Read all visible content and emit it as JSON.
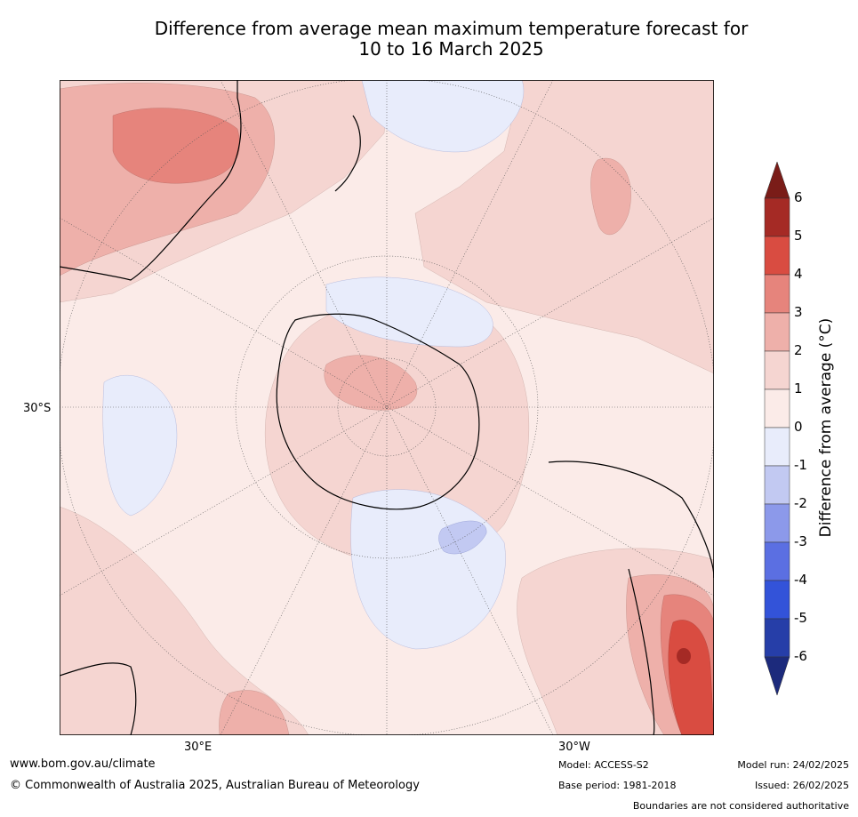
{
  "title": {
    "line1": "Difference from average mean maximum temperature forecast for",
    "line2": "10 to 16 March 2025"
  },
  "map": {
    "projection": "south-polar",
    "lat_labels": [
      "30°S"
    ],
    "lon_labels": [
      "30°E",
      "30°W"
    ]
  },
  "colorbar": {
    "label": "Difference from average ($^\\circ$C)",
    "label_display": "Difference from average (°C)",
    "tick_labels": [
      "6",
      "5",
      "4",
      "3",
      "2",
      "1",
      "0",
      "-1",
      "-2",
      "-3",
      "-4",
      "-5",
      "-6"
    ],
    "bins": [
      {
        "range": [
          6,
          99
        ],
        "color": "#7a1c18"
      },
      {
        "range": [
          5,
          6
        ],
        "color": "#a52a25"
      },
      {
        "range": [
          4,
          5
        ],
        "color": "#d94c41"
      },
      {
        "range": [
          3,
          4
        ],
        "color": "#e6847c"
      },
      {
        "range": [
          2,
          3
        ],
        "color": "#eeb0aa"
      },
      {
        "range": [
          1,
          2
        ],
        "color": "#f5d5d1"
      },
      {
        "range": [
          0,
          1
        ],
        "color": "#fbebe8"
      },
      {
        "range": [
          -1,
          0
        ],
        "color": "#e8ecfb"
      },
      {
        "range": [
          -2,
          -1
        ],
        "color": "#c2c9f2"
      },
      {
        "range": [
          -3,
          -2
        ],
        "color": "#8c99ea"
      },
      {
        "range": [
          -4,
          -3
        ],
        "color": "#5b6fe2"
      },
      {
        "range": [
          -5,
          -4
        ],
        "color": "#3353d9"
      },
      {
        "range": [
          -6,
          -5
        ],
        "color": "#263ea8"
      },
      {
        "range": [
          -99,
          -6
        ],
        "color": "#1c2a7c"
      }
    ]
  },
  "footer": {
    "website": "www.bom.gov.au/climate",
    "copyright": "© Commonwealth of Australia 2025, Australian Bureau of Meteorology",
    "model": "Model: ACCESS-S2",
    "base_period": "Base period: 1981-2018",
    "model_run": "Model run: 24/02/2025",
    "issued": "Issued: 26/02/2025",
    "disclaimer": "Boundaries are not considered authoritative"
  }
}
